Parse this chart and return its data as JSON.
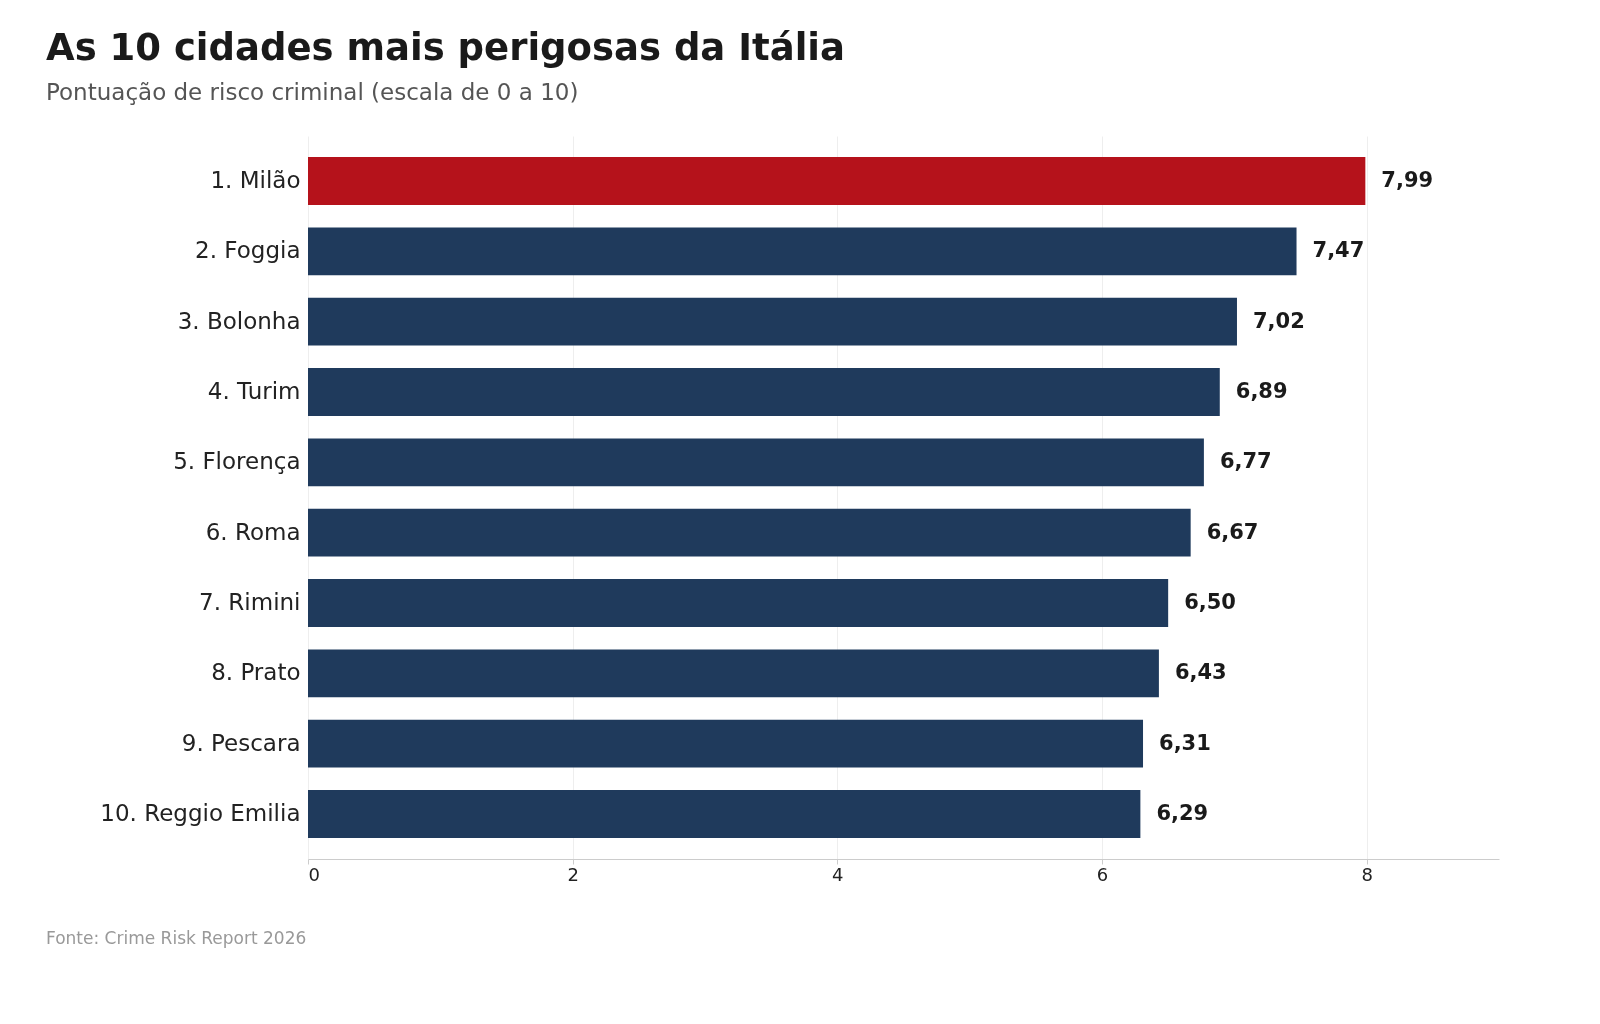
{
  "chart_data": {
    "type": "bar",
    "orientation": "horizontal",
    "title": "As 10 cidades mais perigosas da Itália",
    "subtitle": "Pontuação de risco criminal (escala de 0 a 10)",
    "categories": [
      "1. Milão",
      "2. Foggia",
      "3. Bolonha",
      "4. Turim",
      "5. Florença",
      "6. Roma",
      "7. Rimini",
      "8. Prato",
      "9. Pescara",
      "10. Reggio Emilia"
    ],
    "values": [
      7.99,
      7.47,
      7.02,
      6.89,
      6.77,
      6.67,
      6.5,
      6.43,
      6.31,
      6.29
    ],
    "value_labels": [
      "7,99",
      "7,47",
      "7,02",
      "6,89",
      "6,77",
      "6,67",
      "6,50",
      "6,43",
      "6,31",
      "6,29"
    ],
    "colors": [
      "#b5121b",
      "#1f3a5c",
      "#1f3a5c",
      "#1f3a5c",
      "#1f3a5c",
      "#1f3a5c",
      "#1f3a5c",
      "#1f3a5c",
      "#1f3a5c",
      "#1f3a5c"
    ],
    "xlim": [
      0,
      9
    ],
    "xticks": [
      0,
      2,
      4,
      6,
      8
    ],
    "grid": "x",
    "annotations": [
      "Fonte: Crime Risk Report 2026"
    ]
  }
}
